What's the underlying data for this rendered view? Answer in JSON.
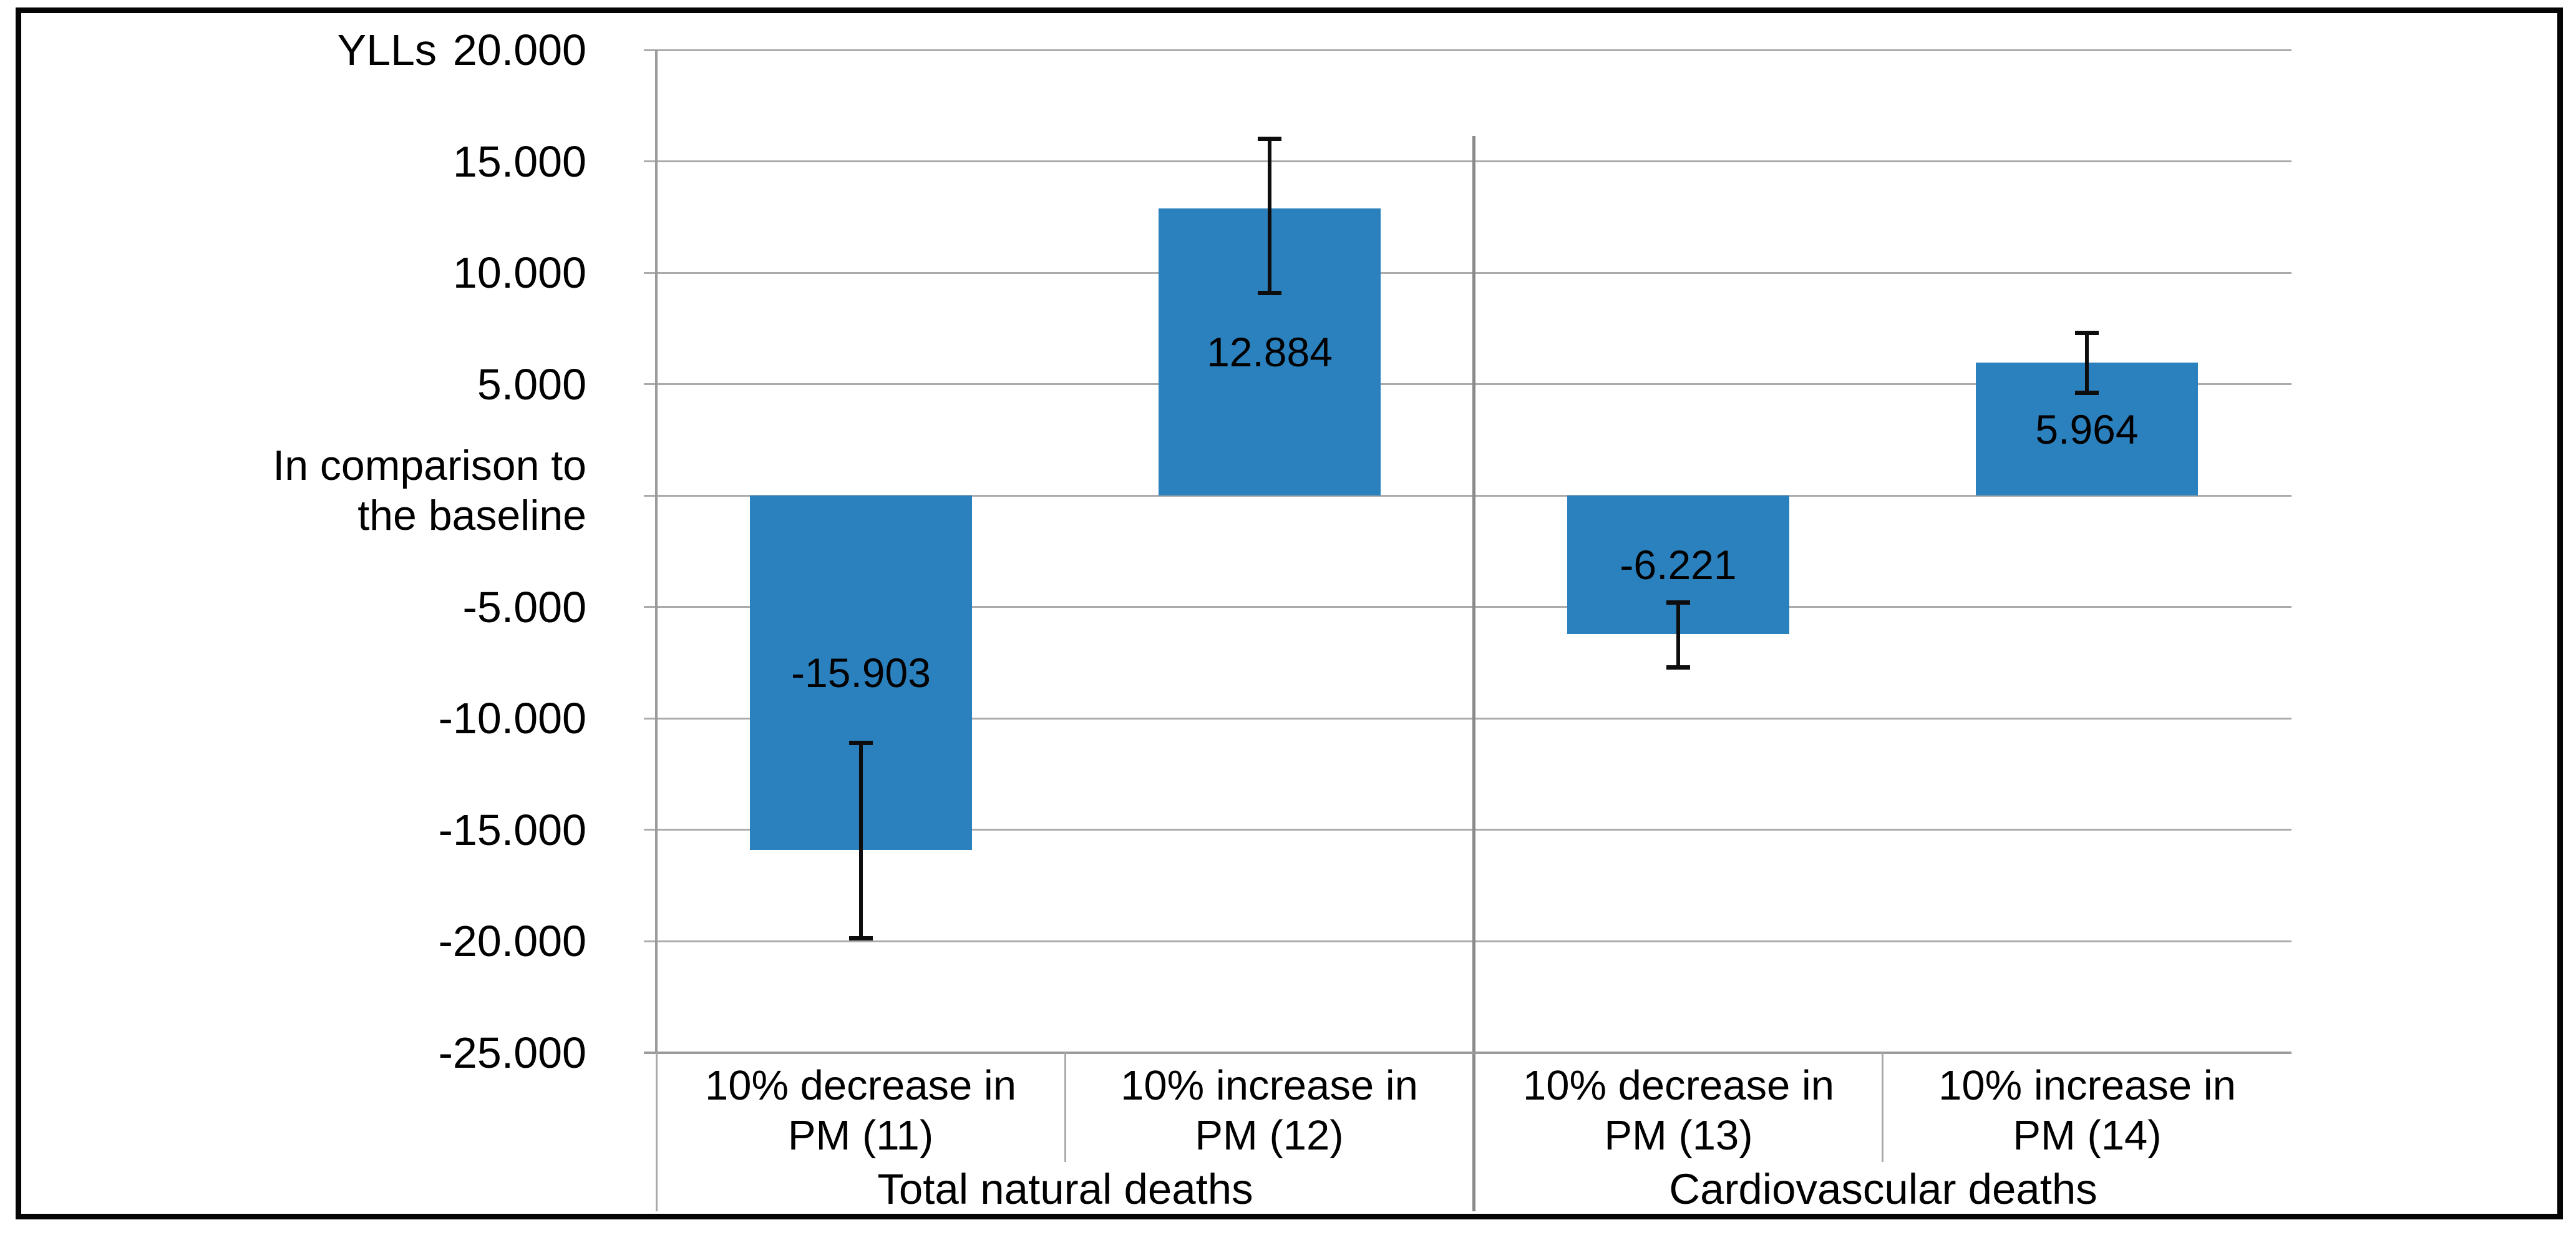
{
  "figure": {
    "background": "#FFFFFF",
    "border_color": "#050505"
  },
  "chart_data": {
    "type": "bar",
    "title": "",
    "unit_label": "YLLs",
    "ylabel": "In comparison to the baseline",
    "ylabel_lines": [
      "In comparison to",
      "the baseline"
    ],
    "xlabel": "",
    "ylim": [
      -25000,
      20000
    ],
    "ytick_interval": 5000,
    "yticks": [
      {
        "value": 20000,
        "label": "20.000"
      },
      {
        "value": 15000,
        "label": "15.000"
      },
      {
        "value": 10000,
        "label": "10.000"
      },
      {
        "value": 5000,
        "label": "5.000"
      },
      {
        "value": 0,
        "label": ""
      },
      {
        "value": -5000,
        "label": "-5.000"
      },
      {
        "value": -10000,
        "label": "-10.000"
      },
      {
        "value": -15000,
        "label": "-15.000"
      },
      {
        "value": -20000,
        "label": "-20.000"
      },
      {
        "value": -25000,
        "label": "-25.000"
      }
    ],
    "grid": true,
    "legend": "none",
    "bars": [
      {
        "category_lines": [
          "10% decrease in",
          "PM (11)"
        ],
        "group": "Total natural deaths",
        "value": -15903,
        "label": "-15.903",
        "error_high": -11100,
        "error_low": -19850
      },
      {
        "category_lines": [
          "10% increase in",
          "PM (12)"
        ],
        "group": "Total natural deaths",
        "value": 12884,
        "label": "12.884",
        "error_high": 16000,
        "error_low": 9100
      },
      {
        "category_lines": [
          "10% decrease in",
          "PM (13)"
        ],
        "group": "Cardiovascular deaths",
        "value": -6221,
        "label": "-6.221",
        "error_high": -4800,
        "error_low": -7700
      },
      {
        "category_lines": [
          "10% increase in",
          "PM (14)"
        ],
        "group": "Cardiovascular deaths",
        "value": 5964,
        "label": "5.964",
        "error_high": 7300,
        "error_low": 4600
      }
    ],
    "groups": [
      {
        "label": "Total natural deaths",
        "span": [
          0,
          2
        ]
      },
      {
        "label": "Cardiovascular deaths",
        "span": [
          2,
          4
        ]
      }
    ],
    "colors": {
      "bar": "#2B81BE",
      "gridline": "#ABABAB",
      "axis_line": "#9B9B9B",
      "separator": "#A9A9A9",
      "group_divider": "#8A8A8A",
      "error_bar": "#0D0D0D",
      "text": "#000000"
    }
  }
}
